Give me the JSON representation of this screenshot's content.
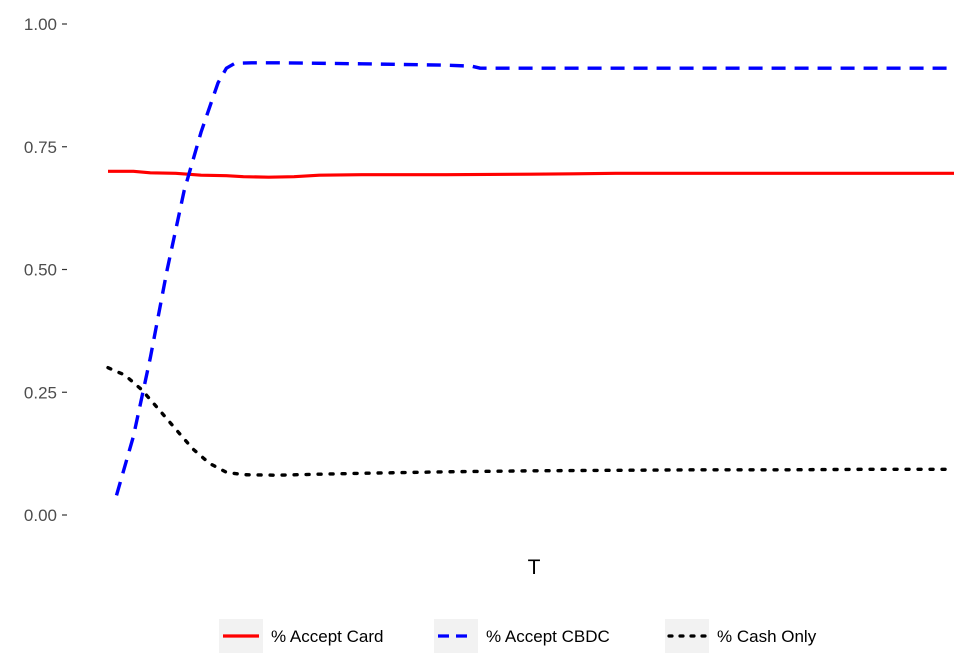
{
  "chart_data": {
    "type": "line",
    "title": "",
    "xlabel": "T",
    "ylabel": "",
    "x_range": [
      0,
      100
    ],
    "ylim": [
      0,
      1
    ],
    "y_ticks": [
      0.0,
      0.25,
      0.5,
      0.75,
      1.0
    ],
    "y_tick_labels": [
      "0.00",
      "0.25",
      "0.50",
      "0.75",
      "1.00"
    ],
    "grid": false,
    "legend_position": "bottom",
    "series": [
      {
        "name": "% Accept Card",
        "color": "#ff0000",
        "linetype": "solid",
        "x": [
          0,
          3,
          5,
          8,
          11,
          14,
          15,
          16,
          19,
          22,
          25,
          30,
          40,
          50,
          55,
          60,
          70,
          80,
          90,
          100
        ],
        "values": [
          0.7,
          0.7,
          0.697,
          0.696,
          0.692,
          0.691,
          0.69,
          0.689,
          0.688,
          0.689,
          0.692,
          0.693,
          0.693,
          0.694,
          0.695,
          0.696,
          0.696,
          0.696,
          0.696,
          0.696
        ]
      },
      {
        "name": "% Accept CBDC",
        "color": "#0000ff",
        "linetype": "dashed",
        "x": [
          1,
          3,
          5,
          7,
          9,
          11,
          13,
          14,
          15,
          17,
          20,
          30,
          40,
          43,
          44,
          50,
          60,
          70,
          80,
          90,
          100
        ],
        "values": [
          0.04,
          0.16,
          0.32,
          0.5,
          0.66,
          0.78,
          0.88,
          0.91,
          0.92,
          0.921,
          0.921,
          0.919,
          0.916,
          0.914,
          0.91,
          0.91,
          0.91,
          0.91,
          0.91,
          0.91,
          0.91
        ]
      },
      {
        "name": "% Cash Only",
        "color": "#000000",
        "linetype": "dotted",
        "x": [
          0,
          2,
          4,
          6,
          8,
          10,
          12,
          14,
          16,
          20,
          25,
          30,
          40,
          50,
          60,
          70,
          80,
          90,
          100
        ],
        "values": [
          0.3,
          0.285,
          0.255,
          0.215,
          0.175,
          0.135,
          0.105,
          0.087,
          0.082,
          0.081,
          0.083,
          0.085,
          0.088,
          0.09,
          0.091,
          0.092,
          0.092,
          0.093,
          0.093
        ]
      }
    ]
  }
}
